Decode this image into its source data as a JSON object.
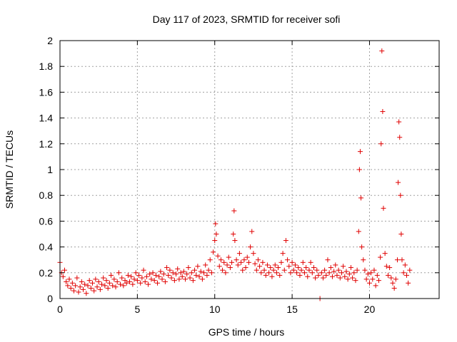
{
  "chart_data": {
    "type": "scatter",
    "title": "Day 117 of 2023, SRMTID for receiver sofi",
    "xlabel": "GPS time / hours",
    "ylabel": "SRMTID / TECUs",
    "xlim": [
      0,
      24.5
    ],
    "ylim": [
      0,
      2
    ],
    "xticks": [
      0,
      5,
      10,
      15,
      20
    ],
    "xtick_labels": [
      "0",
      "5",
      "10",
      "15",
      "20"
    ],
    "yticks": [
      0,
      0.2,
      0.4,
      0.6,
      0.8,
      1,
      1.2,
      1.4,
      1.6,
      1.8,
      2
    ],
    "ytick_labels": [
      "0",
      "0.2",
      "0.4",
      "0.6",
      "0.8",
      "1",
      "1.2",
      "1.4",
      "1.6",
      "1.8",
      "2"
    ],
    "grid": true,
    "marker": "+",
    "color": "#e00000",
    "series": [
      {
        "name": "sofi",
        "points": [
          [
            0.0,
            0.28
          ],
          [
            0.1,
            0.2
          ],
          [
            0.2,
            0.17
          ],
          [
            0.3,
            0.22
          ],
          [
            0.4,
            0.13
          ],
          [
            0.5,
            0.1
          ],
          [
            0.6,
            0.15
          ],
          [
            0.7,
            0.08
          ],
          [
            0.8,
            0.12
          ],
          [
            0.9,
            0.06
          ],
          [
            1.0,
            0.1
          ],
          [
            1.1,
            0.16
          ],
          [
            1.2,
            0.05
          ],
          [
            1.3,
            0.09
          ],
          [
            1.4,
            0.13
          ],
          [
            1.5,
            0.07
          ],
          [
            1.6,
            0.11
          ],
          [
            1.7,
            0.04
          ],
          [
            1.8,
            0.1
          ],
          [
            1.9,
            0.14
          ],
          [
            2.0,
            0.08
          ],
          [
            2.1,
            0.12
          ],
          [
            2.2,
            0.06
          ],
          [
            2.3,
            0.15
          ],
          [
            2.4,
            0.09
          ],
          [
            2.5,
            0.13
          ],
          [
            2.6,
            0.07
          ],
          [
            2.7,
            0.11
          ],
          [
            2.8,
            0.16
          ],
          [
            2.9,
            0.1
          ],
          [
            3.0,
            0.14
          ],
          [
            3.1,
            0.08
          ],
          [
            3.2,
            0.12
          ],
          [
            3.3,
            0.18
          ],
          [
            3.4,
            0.1
          ],
          [
            3.5,
            0.15
          ],
          [
            3.6,
            0.09
          ],
          [
            3.7,
            0.13
          ],
          [
            3.8,
            0.2
          ],
          [
            3.9,
            0.11
          ],
          [
            4.0,
            0.16
          ],
          [
            4.1,
            0.1
          ],
          [
            4.2,
            0.14
          ],
          [
            4.3,
            0.12
          ],
          [
            4.4,
            0.18
          ],
          [
            4.5,
            0.13
          ],
          [
            4.6,
            0.17
          ],
          [
            4.7,
            0.11
          ],
          [
            4.8,
            0.15
          ],
          [
            4.9,
            0.2
          ],
          [
            5.0,
            0.14
          ],
          [
            5.1,
            0.18
          ],
          [
            5.2,
            0.12
          ],
          [
            5.3,
            0.16
          ],
          [
            5.4,
            0.22
          ],
          [
            5.5,
            0.13
          ],
          [
            5.6,
            0.17
          ],
          [
            5.7,
            0.11
          ],
          [
            5.8,
            0.19
          ],
          [
            5.9,
            0.15
          ],
          [
            6.0,
            0.2
          ],
          [
            6.1,
            0.14
          ],
          [
            6.2,
            0.18
          ],
          [
            6.3,
            0.12
          ],
          [
            6.4,
            0.17
          ],
          [
            6.5,
            0.21
          ],
          [
            6.6,
            0.15
          ],
          [
            6.7,
            0.19
          ],
          [
            6.8,
            0.13
          ],
          [
            6.9,
            0.24
          ],
          [
            7.0,
            0.18
          ],
          [
            7.1,
            0.22
          ],
          [
            7.2,
            0.16
          ],
          [
            7.3,
            0.2
          ],
          [
            7.4,
            0.14
          ],
          [
            7.5,
            0.19
          ],
          [
            7.6,
            0.23
          ],
          [
            7.7,
            0.15
          ],
          [
            7.8,
            0.2
          ],
          [
            7.9,
            0.17
          ],
          [
            8.0,
            0.21
          ],
          [
            8.1,
            0.15
          ],
          [
            8.2,
            0.19
          ],
          [
            8.3,
            0.24
          ],
          [
            8.4,
            0.16
          ],
          [
            8.5,
            0.2
          ],
          [
            8.6,
            0.14
          ],
          [
            8.7,
            0.22
          ],
          [
            8.8,
            0.18
          ],
          [
            8.9,
            0.25
          ],
          [
            9.0,
            0.17
          ],
          [
            9.1,
            0.21
          ],
          [
            9.2,
            0.15
          ],
          [
            9.3,
            0.2
          ],
          [
            9.4,
            0.26
          ],
          [
            9.5,
            0.18
          ],
          [
            9.6,
            0.22
          ],
          [
            9.7,
            0.3
          ],
          [
            9.8,
            0.2
          ],
          [
            9.9,
            0.36
          ],
          [
            10.0,
            0.45
          ],
          [
            10.05,
            0.58
          ],
          [
            10.1,
            0.5
          ],
          [
            10.2,
            0.33
          ],
          [
            10.3,
            0.25
          ],
          [
            10.4,
            0.3
          ],
          [
            10.5,
            0.22
          ],
          [
            10.6,
            0.28
          ],
          [
            10.7,
            0.2
          ],
          [
            10.8,
            0.26
          ],
          [
            10.9,
            0.32
          ],
          [
            11.0,
            0.24
          ],
          [
            11.1,
            0.28
          ],
          [
            11.2,
            0.5
          ],
          [
            11.25,
            0.68
          ],
          [
            11.3,
            0.45
          ],
          [
            11.4,
            0.3
          ],
          [
            11.5,
            0.26
          ],
          [
            11.6,
            0.35
          ],
          [
            11.7,
            0.28
          ],
          [
            11.8,
            0.22
          ],
          [
            11.9,
            0.3
          ],
          [
            12.0,
            0.24
          ],
          [
            12.1,
            0.32
          ],
          [
            12.2,
            0.28
          ],
          [
            12.3,
            0.4
          ],
          [
            12.4,
            0.52
          ],
          [
            12.5,
            0.35
          ],
          [
            12.6,
            0.27
          ],
          [
            12.7,
            0.22
          ],
          [
            12.8,
            0.3
          ],
          [
            12.9,
            0.25
          ],
          [
            13.0,
            0.2
          ],
          [
            13.1,
            0.28
          ],
          [
            13.2,
            0.22
          ],
          [
            13.3,
            0.18
          ],
          [
            13.4,
            0.26
          ],
          [
            13.5,
            0.2
          ],
          [
            13.6,
            0.24
          ],
          [
            13.7,
            0.17
          ],
          [
            13.8,
            0.22
          ],
          [
            13.9,
            0.26
          ],
          [
            14.0,
            0.2
          ],
          [
            14.1,
            0.24
          ],
          [
            14.2,
            0.18
          ],
          [
            14.3,
            0.28
          ],
          [
            14.4,
            0.35
          ],
          [
            14.5,
            0.22
          ],
          [
            14.6,
            0.45
          ],
          [
            14.7,
            0.3
          ],
          [
            14.8,
            0.25
          ],
          [
            14.9,
            0.2
          ],
          [
            15.0,
            0.28
          ],
          [
            15.1,
            0.22
          ],
          [
            15.2,
            0.26
          ],
          [
            15.3,
            0.2
          ],
          [
            15.4,
            0.24
          ],
          [
            15.5,
            0.18
          ],
          [
            15.6,
            0.22
          ],
          [
            15.7,
            0.28
          ],
          [
            15.8,
            0.2
          ],
          [
            15.9,
            0.24
          ],
          [
            16.0,
            0.17
          ],
          [
            16.1,
            0.22
          ],
          [
            16.2,
            0.28
          ],
          [
            16.3,
            0.2
          ],
          [
            16.4,
            0.24
          ],
          [
            16.5,
            0.16
          ],
          [
            16.6,
            0.22
          ],
          [
            16.7,
            0.18
          ],
          [
            16.8,
            0.0
          ],
          [
            16.9,
            0.2
          ],
          [
            17.0,
            0.16
          ],
          [
            17.1,
            0.22
          ],
          [
            17.2,
            0.18
          ],
          [
            17.3,
            0.3
          ],
          [
            17.4,
            0.2
          ],
          [
            17.5,
            0.24
          ],
          [
            17.6,
            0.17
          ],
          [
            17.7,
            0.21
          ],
          [
            17.8,
            0.26
          ],
          [
            17.9,
            0.18
          ],
          [
            18.0,
            0.22
          ],
          [
            18.1,
            0.16
          ],
          [
            18.2,
            0.2
          ],
          [
            18.3,
            0.25
          ],
          [
            18.4,
            0.17
          ],
          [
            18.5,
            0.21
          ],
          [
            18.6,
            0.15
          ],
          [
            18.7,
            0.19
          ],
          [
            18.8,
            0.24
          ],
          [
            18.9,
            0.16
          ],
          [
            19.0,
            0.2
          ],
          [
            19.1,
            0.14
          ],
          [
            19.2,
            0.22
          ],
          [
            19.3,
            0.52
          ],
          [
            19.35,
            1.0
          ],
          [
            19.4,
            1.14
          ],
          [
            19.45,
            0.78
          ],
          [
            19.5,
            0.4
          ],
          [
            19.6,
            0.3
          ],
          [
            19.7,
            0.22
          ],
          [
            19.8,
            0.15
          ],
          [
            19.9,
            0.19
          ],
          [
            20.0,
            0.12
          ],
          [
            20.1,
            0.2
          ],
          [
            20.2,
            0.15
          ],
          [
            20.3,
            0.22
          ],
          [
            20.4,
            0.1
          ],
          [
            20.5,
            0.18
          ],
          [
            20.6,
            0.14
          ],
          [
            20.7,
            0.32
          ],
          [
            20.75,
            1.2
          ],
          [
            20.8,
            1.92
          ],
          [
            20.85,
            1.45
          ],
          [
            20.9,
            0.7
          ],
          [
            21.0,
            0.35
          ],
          [
            21.1,
            0.25
          ],
          [
            21.2,
            0.18
          ],
          [
            21.3,
            0.24
          ],
          [
            21.4,
            0.16
          ],
          [
            21.5,
            0.12
          ],
          [
            21.6,
            0.08
          ],
          [
            21.7,
            0.15
          ],
          [
            21.8,
            0.3
          ],
          [
            21.85,
            0.9
          ],
          [
            21.9,
            1.37
          ],
          [
            21.95,
            1.25
          ],
          [
            22.0,
            0.8
          ],
          [
            22.05,
            0.5
          ],
          [
            22.1,
            0.3
          ],
          [
            22.2,
            0.2
          ],
          [
            22.3,
            0.26
          ],
          [
            22.4,
            0.18
          ],
          [
            22.5,
            0.12
          ],
          [
            22.6,
            0.22
          ]
        ]
      }
    ]
  }
}
